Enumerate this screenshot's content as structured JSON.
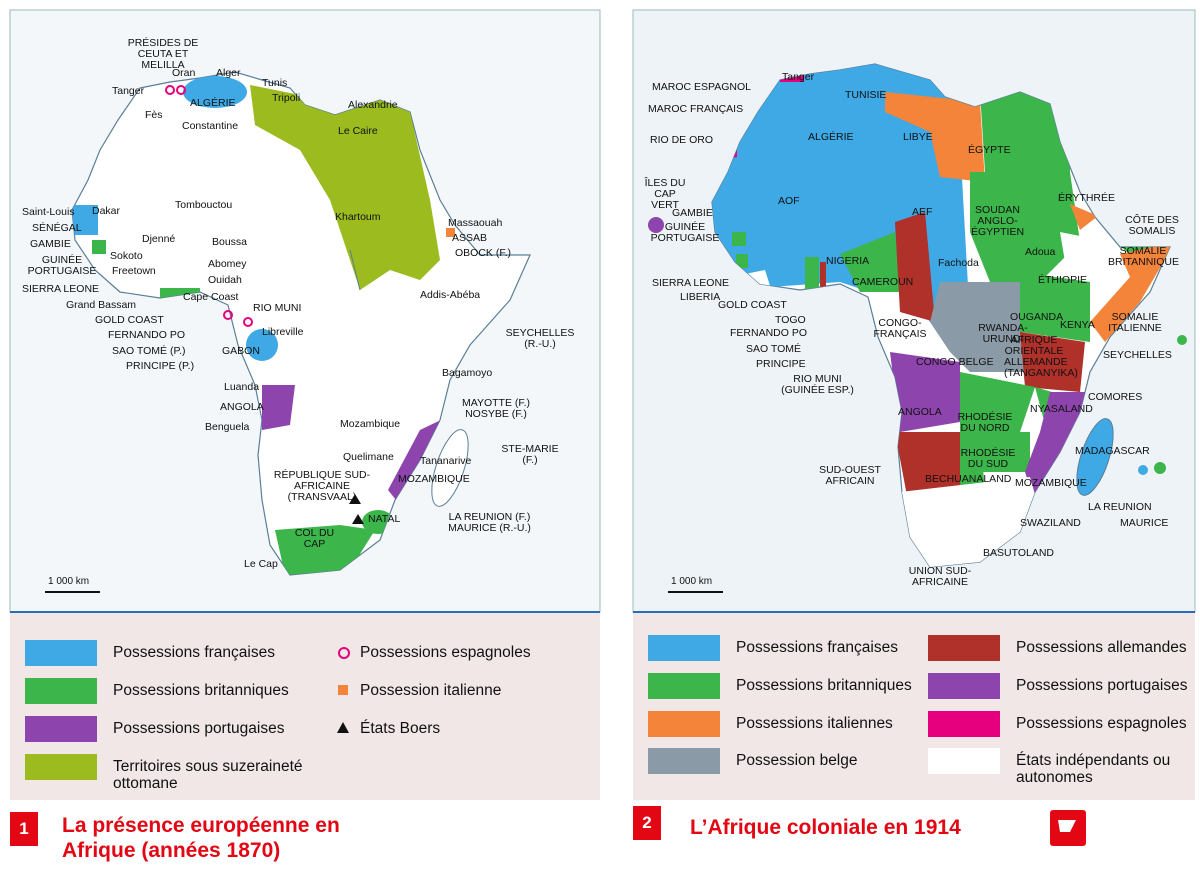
{
  "map1": {
    "labels": [
      "PRÉSIDES DE CEUTA ET MELILLA",
      "Oran",
      "Alger",
      "Tunis",
      "Tripoli",
      "Tanger",
      "ALGÉRIE",
      "Fès",
      "Constantine",
      "Alexandrie",
      "Le Caire",
      "Dakar",
      "Tombouctou",
      "Saint-Louis",
      "SÉNÉGAL",
      "GAMBIE",
      "GUINÉE PORTUGAISE",
      "SIERRA LEONE",
      "Djenné",
      "Sokoto",
      "Boussa",
      "Freetown",
      "Abomey",
      "Ouidah",
      "Grand Bassam",
      "Cape Coast",
      "GOLD COAST",
      "FERNANDO PO",
      "RIO MUNI",
      "Libreville",
      "SAO TOMÉ (P.)",
      "GABON",
      "PRINCIPE (P.)",
      "Khartoum",
      "Massaouah",
      "ASSAB",
      "OBOCK (F.)",
      "Addis-Abéba",
      "SEYCHELLES (R.-U.)",
      "Bagamoyo",
      "Luanda",
      "ANGOLA",
      "Benguela",
      "MAYOTTE (F.) NOSYBE (F.)",
      "Mozambique",
      "Quelimane",
      "Tananarive",
      "STE-MARIE (F.)",
      "MOZAMBIQUE",
      "RÉPUBLIQUE SUD-AFRICAINE (TRANSVAAL)",
      "NATAL",
      "LA REUNION (F.) MAURICE (R.-U.)",
      "COL DU CAP",
      "Le Cap"
    ],
    "scale": "1 000 km",
    "legend": [
      {
        "label": "Possessions françaises",
        "color": "#3fa9e6"
      },
      {
        "label": "Possessions britanniques",
        "color": "#3cb54a"
      },
      {
        "label": "Possessions portugaises",
        "color": "#8e44ad"
      },
      {
        "label": "Territoires sous suzeraineté ottomane",
        "color": "#9bbb1e"
      },
      {
        "label": "Possessions espagnoles",
        "color": "#e6007e"
      },
      {
        "label": "Possession italienne",
        "color": "#f4843a"
      },
      {
        "label": "États Boers",
        "color": "#111111"
      }
    ],
    "number": "1",
    "title": "La présence européenne en Afrique (années 1870)"
  },
  "map2": {
    "labels": [
      "Tanger",
      "MAROC ESPAGNOL",
      "MAROC FRANÇAIS",
      "TUNISIE",
      "ALGÉRIE",
      "LIBYE",
      "ÉGYPTE",
      "RIO DE ORO",
      "ÎLES DU CAP VERT",
      "AOF",
      "AEF",
      "GAMBIE",
      "GUINÉE PORTUGAISE",
      "SIERRA LEONE",
      "LIBERIA",
      "SOUDAN ANGLO-ÉGYPTIEN",
      "Fachoda",
      "ÉRYTHRÉE",
      "CÔTE DES SOMALIS",
      "Adoua",
      "SOMALIE BRITANNIQUE",
      "ÉTHIOPIE",
      "NIGERIA",
      "CAMEROUN",
      "GOLD COAST",
      "TOGO",
      "FERNANDO PO",
      "SAO TOMÉ",
      "PRINCIPE",
      "RIO MUNI (GUINÉE ESP.)",
      "CONGO-FRANÇAIS",
      "CONGO BELGE",
      "RWANDA-URUNDI",
      "OUGANDA",
      "KENYA",
      "SOMALIE ITALIENNE",
      "SEYCHELLES",
      "AFRIQUE ORIENTALE ALLEMANDE (TANGANYIKA)",
      "ANGOLA",
      "RHODÉSIE DU NORD",
      "NYASALAND",
      "COMORES",
      "MADAGASCAR",
      "RHODÉSIE DU SUD",
      "SUD-OUEST AFRICAIN",
      "BECHUANALAND",
      "MOZAMBIQUE",
      "LA REUNION",
      "MAURICE",
      "SWAZILAND",
      "BASUTOLAND",
      "UNION SUD-AFRICAINE"
    ],
    "scale": "1 000 km",
    "legend": [
      {
        "label": "Possessions françaises",
        "color": "#3fa9e6"
      },
      {
        "label": "Possessions britanniques",
        "color": "#3cb54a"
      },
      {
        "label": "Possessions italiennes",
        "color": "#f4843a"
      },
      {
        "label": "Possession belge",
        "color": "#8a9aa6"
      },
      {
        "label": "Possessions allemandes",
        "color": "#b0302a"
      },
      {
        "label": "Possessions portugaises",
        "color": "#8e44ad"
      },
      {
        "label": "Possessions espagnoles",
        "color": "#e6007e"
      },
      {
        "label": "États indépendants ou autonomes",
        "color": "#ffffff"
      }
    ],
    "number": "2",
    "title": "L’Afrique coloniale en 1914"
  }
}
